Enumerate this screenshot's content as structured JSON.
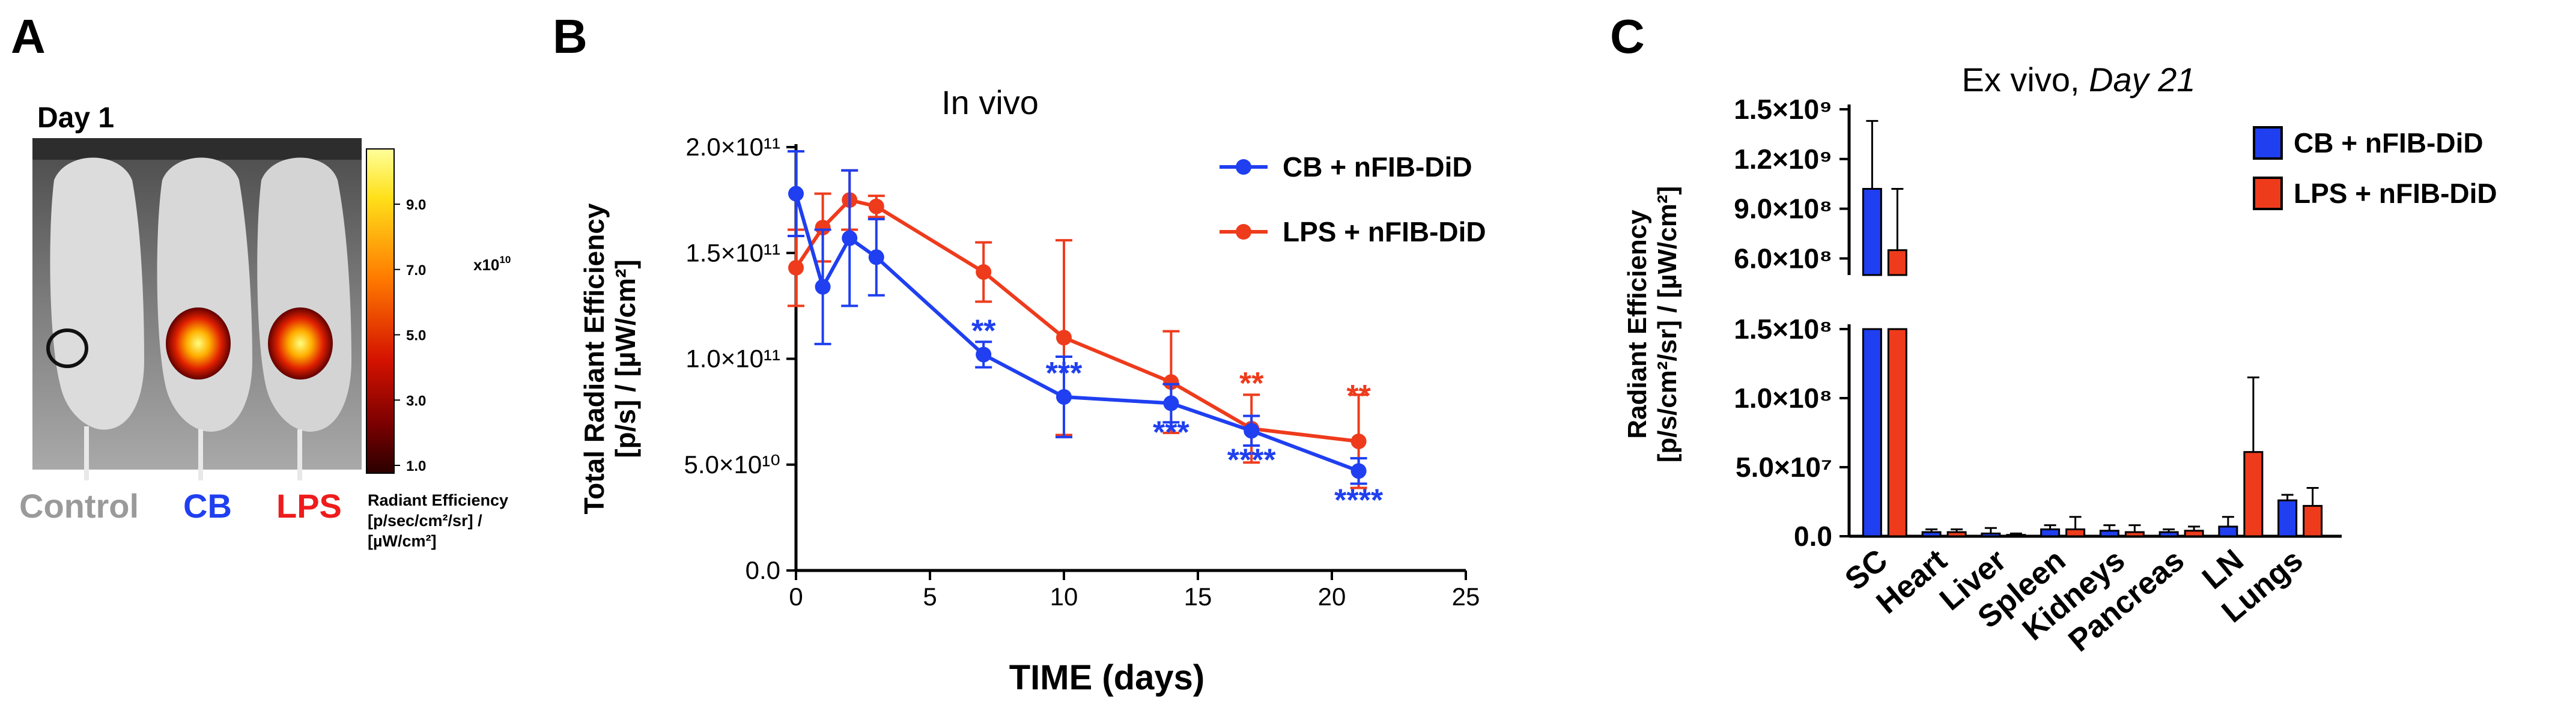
{
  "panel_a": {
    "letter": "A",
    "day_label": "Day 1",
    "group_labels": [
      {
        "text": "Control",
        "color": "#9a9a9a"
      },
      {
        "text": "CB",
        "color": "#1f3ff0"
      },
      {
        "text": "LPS",
        "color": "#ee1c1c"
      }
    ],
    "colorbar": {
      "ticks": [
        "9.0",
        "7.0",
        "5.0",
        "3.0",
        "1.0"
      ],
      "multiplier": "x10",
      "multiplier_exp": "10",
      "caption_lines": [
        "Radiant Efficiency",
        "[p/sec/cm²/sr] /",
        "[µW/cm²]"
      ]
    }
  },
  "panel_b_letter": "B",
  "panel_c_letter": "C",
  "chart_data": [
    {
      "type": "line",
      "title": "In vivo",
      "xlabel": "TIME (days)",
      "ylabel_lines": [
        "Total Radiant Efficiency",
        "[p/s] / [µW/cm²]"
      ],
      "xlim": [
        0,
        25
      ],
      "ylim": [
        0,
        200000000000
      ],
      "x_ticks": [
        0,
        5,
        10,
        15,
        20,
        25
      ],
      "y_ticks": [
        {
          "value": 0,
          "label": "0.0"
        },
        {
          "value": 50000000000,
          "label": "5.0×10¹⁰"
        },
        {
          "value": 100000000000,
          "label": "1.0×10¹¹"
        },
        {
          "value": 150000000000,
          "label": "1.5×10¹¹"
        },
        {
          "value": 200000000000,
          "label": "2.0×10¹¹"
        }
      ],
      "legend_position": "top-right",
      "series": [
        {
          "name": "CB + nFIB-DiD",
          "color": "#1f3ff0",
          "x": [
            0,
            1,
            2,
            3,
            7,
            10,
            14,
            17,
            21
          ],
          "y": [
            178000000000,
            134000000000,
            157000000000,
            148000000000,
            102000000000,
            82000000000,
            79000000000,
            66000000000,
            47000000000
          ],
          "err": [
            20000000000,
            27000000000,
            32000000000,
            18000000000,
            6000000000,
            19000000000,
            9000000000,
            7000000000,
            6000000000
          ]
        },
        {
          "name": "LPS + nFIB-DiD",
          "color": "#ee3b1c",
          "x": [
            0,
            1,
            2,
            3,
            7,
            10,
            14,
            17,
            21
          ],
          "y": [
            143000000000,
            162000000000,
            175000000000,
            172000000000,
            141000000000,
            110000000000,
            89000000000,
            67000000000,
            61000000000
          ],
          "err": [
            18000000000,
            16000000000,
            14000000000,
            5000000000,
            14000000000,
            46000000000,
            24000000000,
            16000000000,
            22000000000
          ]
        }
      ],
      "annotations": [
        {
          "x": 7,
          "y": 102000000000,
          "text": "**",
          "color": "#1f3ff0",
          "pos": "above"
        },
        {
          "x": 10,
          "y": 82000000000,
          "text": "***",
          "color": "#1f3ff0",
          "pos": "above"
        },
        {
          "x": 14,
          "y": 79000000000,
          "text": "***",
          "color": "#1f3ff0",
          "pos": "below"
        },
        {
          "x": 17,
          "y": 66000000000,
          "text": "****",
          "color": "#1f3ff0",
          "pos": "below"
        },
        {
          "x": 21,
          "y": 47000000000,
          "text": "****",
          "color": "#1f3ff0",
          "pos": "below"
        },
        {
          "x": 17,
          "y": 67000000000,
          "text": "**",
          "color": "#ee3b1c",
          "pos": "above-err"
        },
        {
          "x": 21,
          "y": 61000000000,
          "text": "**",
          "color": "#ee3b1c",
          "pos": "above-err"
        }
      ]
    },
    {
      "type": "bar",
      "title": "Ex vivo, ",
      "title_italic": "Day 21",
      "ylabel_lines": [
        "Radiant Efficiency",
        "[p/s/cm²/sr] / [µW/cm²]"
      ],
      "categories": [
        "SC",
        "Heart",
        "Liver",
        "Spleen",
        "Kidneys",
        "Pancreas",
        "LN",
        "Lungs"
      ],
      "broken_axis": true,
      "lower_segment": {
        "ylim": [
          0,
          150000000
        ],
        "ticks": [
          {
            "value": 0,
            "label": "0.0"
          },
          {
            "value": 50000000,
            "label": "5.0×10⁷"
          },
          {
            "value": 100000000,
            "label": "1.0×10⁸"
          },
          {
            "value": 150000000,
            "label": "1.5×10⁸"
          }
        ]
      },
      "upper_segment": {
        "ylim": [
          500000000,
          1500000000
        ],
        "ticks": [
          {
            "value": 600000000,
            "label": "6.0×10⁸"
          },
          {
            "value": 900000000,
            "label": "9.0×10⁸"
          },
          {
            "value": 1200000000,
            "label": "1.2×10⁹"
          },
          {
            "value": 1500000000,
            "label": "1.5×10⁹"
          }
        ]
      },
      "legend_position": "top-right",
      "series": [
        {
          "name": "CB + nFIB-DiD",
          "color": "#1f3ff0",
          "values": [
            1020000000,
            3000000,
            2000000,
            5000000,
            4000000,
            3000000,
            7000000,
            26000000
          ],
          "err": [
            410000000,
            2000000,
            4000000,
            3000000,
            4000000,
            2000000,
            7000000,
            4000000
          ]
        },
        {
          "name": "LPS + nFIB-DiD",
          "color": "#ee3b1c",
          "values": [
            650000000,
            3000000,
            1000000,
            5000000,
            3000000,
            4000000,
            61000000,
            22000000
          ],
          "err": [
            370000000,
            2000000,
            1000000,
            9000000,
            5000000,
            3000000,
            54000000,
            13000000
          ]
        }
      ]
    }
  ]
}
